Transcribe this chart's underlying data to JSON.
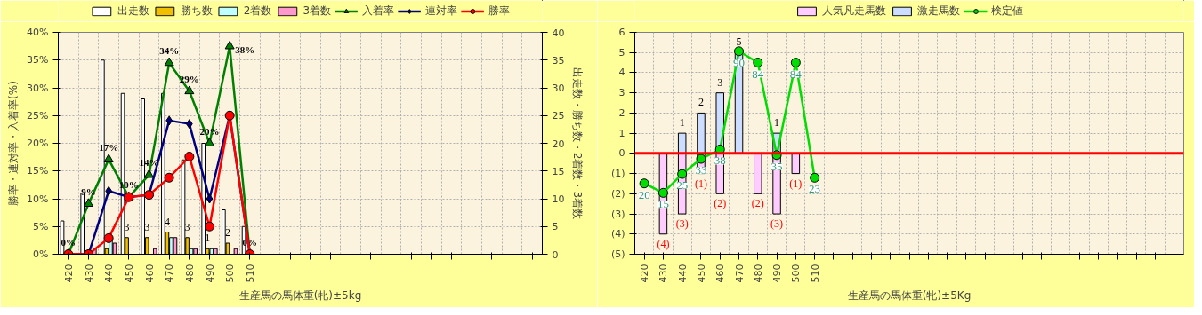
{
  "chart_data": [
    {
      "type": "bar",
      "xlabel": "生産馬の馬体重(牝)±5kg",
      "ylabel": "勝率・連対率・入着率(%)",
      "y2label": "出走数・勝ち数・2着数・3着数",
      "categories": [
        "420",
        "430",
        "440",
        "450",
        "460",
        "470",
        "480",
        "490",
        "500",
        "510",
        null,
        null,
        null,
        null,
        null,
        null,
        null,
        null,
        null,
        null,
        null,
        null,
        null,
        null
      ],
      "ylim": [
        0,
        40
      ],
      "yticks": [
        {
          "value": 0,
          "label": "0%"
        },
        {
          "value": 5,
          "label": "5%"
        },
        {
          "value": 10,
          "label": "10%"
        },
        {
          "value": 15,
          "label": "15%"
        },
        {
          "value": 20,
          "label": "20%"
        },
        {
          "value": 25,
          "label": "25%"
        },
        {
          "value": 30,
          "label": "30%"
        },
        {
          "value": 35,
          "label": "35%"
        },
        {
          "value": 40,
          "label": "40%"
        }
      ],
      "y2lim": [
        0,
        40
      ],
      "y2ticks": [
        0,
        5,
        10,
        15,
        20,
        25,
        30,
        35,
        40
      ],
      "grid": true,
      "legend": "top",
      "series": [
        {
          "name": "出走数",
          "axis": "y2",
          "color": "#ffffff",
          "values": [
            6,
            11,
            35,
            29,
            28,
            29,
            17,
            20,
            8,
            5,
            null,
            null,
            null,
            null,
            null,
            null,
            null,
            null,
            null,
            null,
            null,
            null,
            null,
            null
          ]
        },
        {
          "name": "勝ち数",
          "axis": "y2",
          "color": "#f0c000",
          "values": [
            0,
            0,
            1,
            3,
            3,
            4,
            3,
            1,
            2,
            0,
            null,
            null,
            null,
            null,
            null,
            null,
            null,
            null,
            null,
            null,
            null,
            null,
            null,
            null
          ],
          "value_labels": [
            null,
            null,
            null,
            "3",
            "3",
            "4",
            "3",
            "1",
            "2",
            null,
            null,
            null,
            null,
            null,
            null,
            null,
            null,
            null,
            null,
            null,
            null,
            null,
            null,
            null
          ]
        },
        {
          "name": "2着数",
          "axis": "y2",
          "color": "#c0ffff",
          "values": [
            0,
            0,
            3,
            0,
            0,
            3,
            1,
            1,
            0,
            0,
            null,
            null,
            null,
            null,
            null,
            null,
            null,
            null,
            null,
            null,
            null,
            null,
            null,
            null
          ]
        },
        {
          "name": "3着数",
          "axis": "y2",
          "color": "#ff99cc",
          "values": [
            0,
            1,
            2,
            0,
            1,
            3,
            1,
            1,
            1,
            0,
            null,
            null,
            null,
            null,
            null,
            null,
            null,
            null,
            null,
            null,
            null,
            null,
            null,
            null
          ]
        },
        {
          "name": "入着率",
          "type": "line",
          "color": "#008000",
          "marker": "triangle",
          "values": [
            0,
            9.1,
            17.1,
            10.3,
            14.3,
            34.5,
            29.4,
            20,
            37.5,
            0,
            null,
            null,
            null,
            null,
            null,
            null,
            null,
            null,
            null,
            null,
            null,
            null,
            null,
            null
          ],
          "value_labels": [
            "0%",
            "9%",
            "17%",
            "10%",
            "14%",
            "34%",
            "29%",
            "20%",
            "38%",
            "0%",
            null,
            null,
            null,
            null,
            null,
            null,
            null,
            null,
            null,
            null,
            null,
            null,
            null,
            null
          ]
        },
        {
          "name": "連対率",
          "type": "line",
          "color": "#000080",
          "marker": "diamond",
          "values": [
            0,
            0,
            11.4,
            10.3,
            10.7,
            24.1,
            23.5,
            10,
            25,
            0,
            null,
            null,
            null,
            null,
            null,
            null,
            null,
            null,
            null,
            null,
            null,
            null,
            null,
            null
          ]
        },
        {
          "name": "勝率",
          "type": "line",
          "color": "#ff0000",
          "marker": "circle",
          "values": [
            0,
            0,
            2.9,
            10.3,
            10.7,
            13.8,
            17.6,
            5,
            25,
            0,
            null,
            null,
            null,
            null,
            null,
            null,
            null,
            null,
            null,
            null,
            null,
            null,
            null,
            null
          ]
        }
      ]
    },
    {
      "type": "bar",
      "xlabel": "生産馬の馬体重(牝)±5Kg",
      "stacked": true,
      "categories": [
        "420",
        "430",
        "440",
        "450",
        "460",
        "470",
        "480",
        "490",
        "500",
        "510",
        null,
        null,
        null,
        null,
        null,
        null,
        null,
        null,
        null,
        null,
        null,
        null,
        null,
        null,
        null,
        null,
        null,
        null,
        null
      ],
      "ylim": [
        -5,
        6
      ],
      "yticks": [
        {
          "value": -5,
          "label": "(5)"
        },
        {
          "value": -4,
          "label": "(4)"
        },
        {
          "value": -3,
          "label": "(3)"
        },
        {
          "value": -2,
          "label": "(2)"
        },
        {
          "value": -1,
          "label": "(1)"
        },
        0,
        1,
        2,
        3,
        4,
        5,
        6
      ],
      "y2lim": [
        -17.5,
        100
      ],
      "grid": true,
      "legend": "top",
      "ref_lines": [
        {
          "axis": "y",
          "value": 0,
          "color": "#ff0000"
        }
      ],
      "series": [
        {
          "name": "人気凡走馬数",
          "color": "#ffccff",
          "values": [
            0,
            -4,
            -3,
            -1,
            -2,
            0,
            -2,
            -3,
            -1,
            0,
            null,
            null,
            null,
            null,
            null,
            null,
            null,
            null,
            null,
            null,
            null,
            null,
            null,
            null,
            null,
            null,
            null,
            null,
            null
          ],
          "value_labels": [
            null,
            "(4)",
            "(3)",
            "(1)",
            "(2)",
            null,
            "(2)",
            "(3)",
            "(1)",
            null,
            null,
            null,
            null,
            null,
            null,
            null,
            null,
            null,
            null,
            null,
            null,
            null,
            null,
            null,
            null,
            null,
            null,
            null,
            null
          ]
        },
        {
          "name": "激走馬数",
          "color": "#ccddff",
          "values": [
            0,
            0,
            1,
            2,
            3,
            5,
            0,
            1,
            0,
            0,
            null,
            null,
            null,
            null,
            null,
            null,
            null,
            null,
            null,
            null,
            null,
            null,
            null,
            null,
            null,
            null,
            null,
            null,
            null
          ],
          "value_labels": [
            null,
            null,
            "1",
            "2",
            "3",
            "5",
            null,
            "1",
            null,
            null,
            null,
            null,
            null,
            null,
            null,
            null,
            null,
            null,
            null,
            null,
            null,
            null,
            null,
            null,
            null,
            null,
            null,
            null,
            null
          ]
        },
        {
          "name": "検定値",
          "type": "line",
          "axis": "y2",
          "color": "#00dd00",
          "marker": "circle",
          "values": [
            20,
            15,
            25,
            33,
            38,
            90,
            84,
            35,
            84,
            23,
            null,
            null,
            null,
            null,
            null,
            null,
            null,
            null,
            null,
            null,
            null,
            null,
            null,
            null,
            null,
            null,
            null,
            null,
            null
          ],
          "data_labels": true
        }
      ]
    }
  ]
}
